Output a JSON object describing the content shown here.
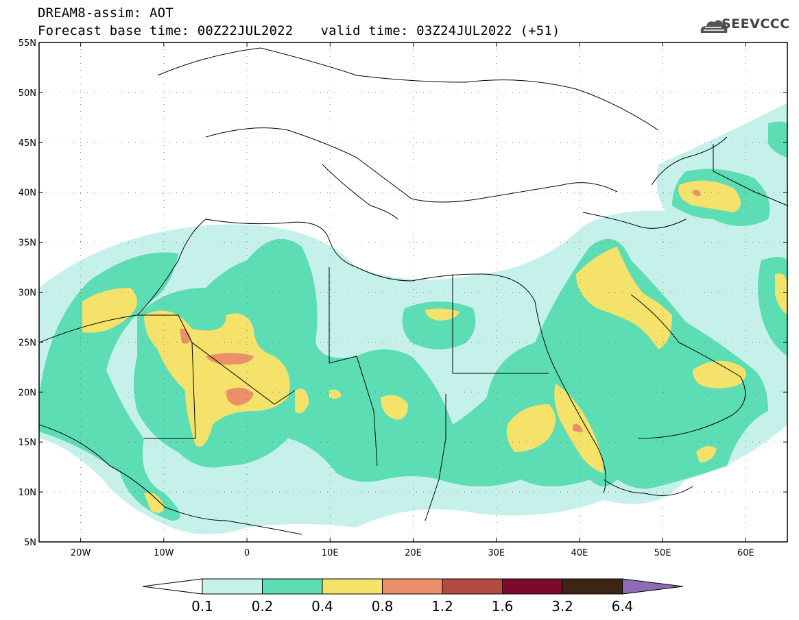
{
  "title": {
    "line1": "DREAM8-assim: AOT",
    "base_time": "Forecast base time: 00Z22JUL2022",
    "valid_time": "valid time: 03Z24JUL2022 (+51)"
  },
  "logo": {
    "text": "SEEVCCC",
    "icon": "cloud-logo-icon"
  },
  "map": {
    "lon_range": [
      -25,
      65
    ],
    "lat_range": [
      5,
      55
    ],
    "lat_ticks": [
      "5N",
      "10N",
      "15N",
      "20N",
      "25N",
      "30N",
      "35N",
      "40N",
      "45N",
      "50N",
      "55N"
    ],
    "lon_ticks": [
      "20W",
      "10W",
      "0",
      "10E",
      "20E",
      "30E",
      "40E",
      "50E",
      "60E"
    ]
  },
  "colorbar": {
    "colors": [
      "#c6f1ea",
      "#5dddb3",
      "#f5e26b",
      "#eb9068",
      "#b34b40",
      "#7d0a2b",
      "#3d2414",
      "#8e6bb2"
    ],
    "labels": [
      "0.1",
      "0.2",
      "0.4",
      "0.8",
      "1.2",
      "1.6",
      "3.2",
      "6.4"
    ]
  }
}
